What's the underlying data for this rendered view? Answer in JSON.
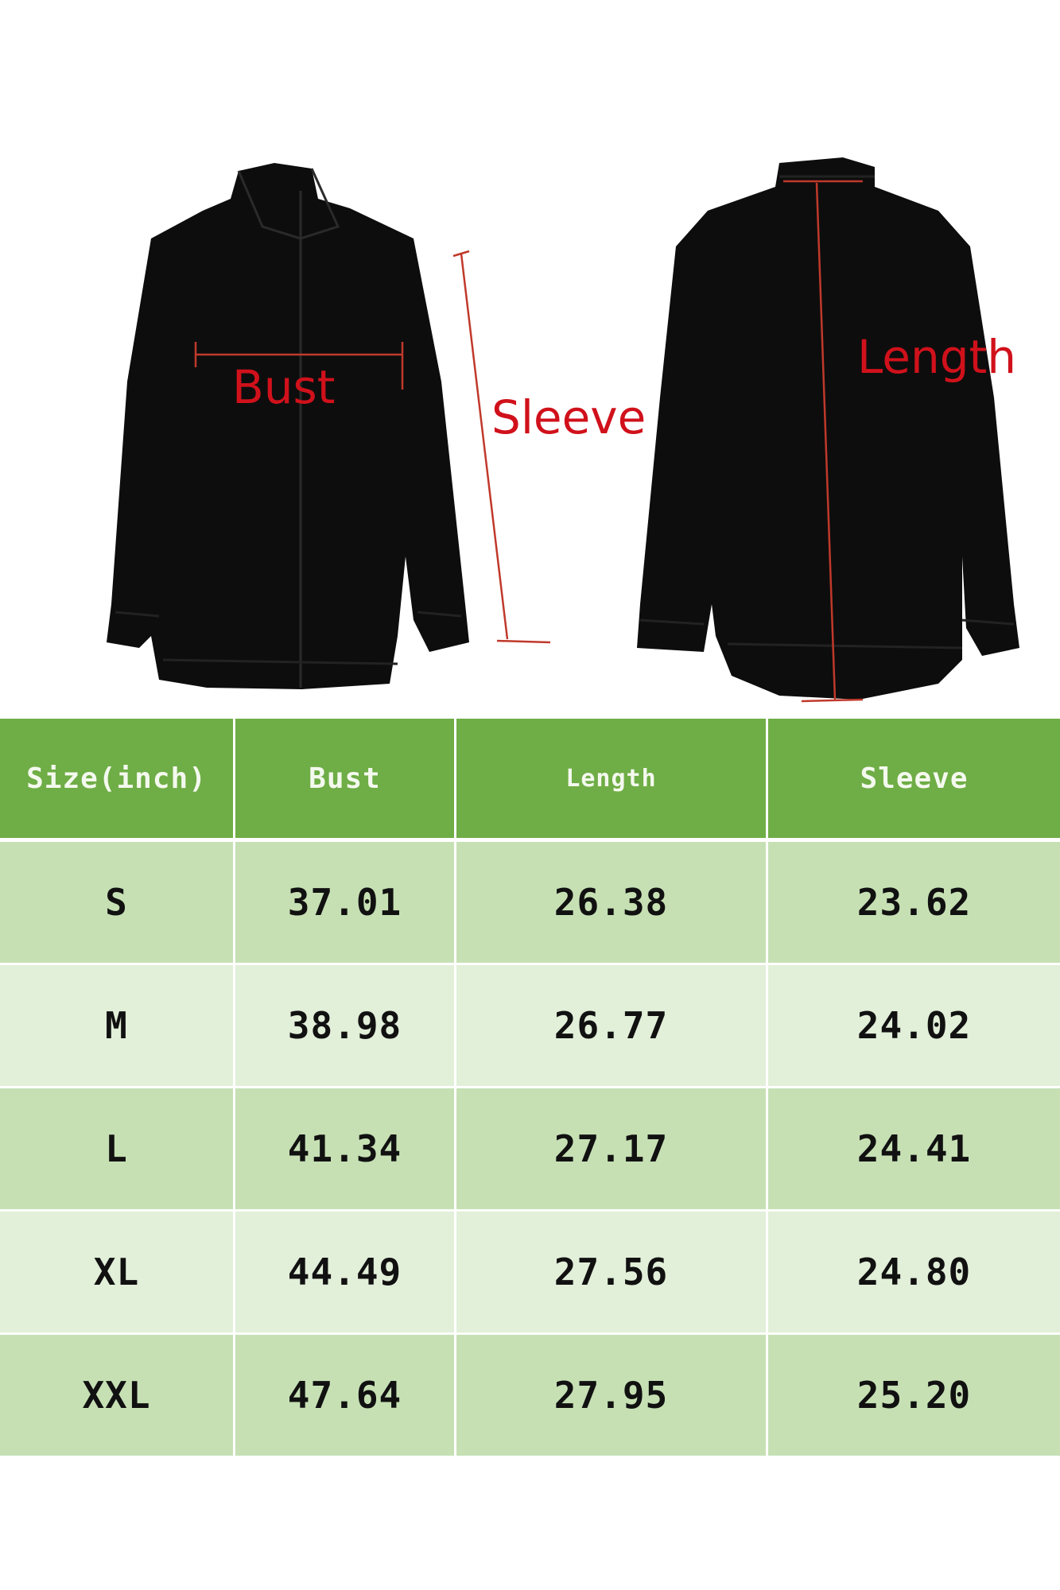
{
  "diagram": {
    "labels": {
      "bust": "Bust",
      "sleeve": "Sleeve",
      "length": "Length"
    },
    "colors": {
      "garment": "#0d0d0d",
      "measure_line": "#c0392b",
      "label": "#d0111b"
    }
  },
  "size_chart": {
    "headers": [
      "Size(inch)",
      "Bust",
      "Length",
      "Sleeve"
    ],
    "rows": [
      [
        "S",
        "37.01",
        "26.38",
        "23.62"
      ],
      [
        "M",
        "38.98",
        "26.77",
        "24.02"
      ],
      [
        "L",
        "41.34",
        "27.17",
        "24.41"
      ],
      [
        "XL",
        "44.49",
        "27.56",
        "24.80"
      ],
      [
        "XXL",
        "47.64",
        "27.95",
        "25.20"
      ]
    ],
    "colors": {
      "header": "#6fad46",
      "row_odd": "#c6e0b4",
      "row_even": "#e2efd9"
    }
  }
}
